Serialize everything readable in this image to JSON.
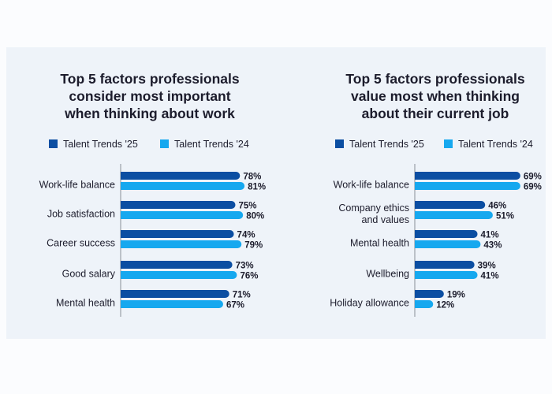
{
  "colors": {
    "series_2025": "#0b4ea2",
    "series_2024": "#16a8ef",
    "text": "#1c1c2c",
    "axis": "#9aa0a8",
    "panel": "#eef3f9"
  },
  "chart_data": [
    {
      "type": "bar",
      "orientation": "horizontal",
      "title": [
        "Top 5 factors professionals",
        "consider most important",
        "when thinking about work"
      ],
      "categories": [
        "Work-life balance",
        "Job satisfaction",
        "Career success",
        "Good salary",
        "Mental health"
      ],
      "series": [
        {
          "name": "Talent Trends '25",
          "values": [
            78,
            75,
            74,
            73,
            71
          ],
          "labels": [
            "78%",
            "75%",
            "74%",
            "73%",
            "71%"
          ]
        },
        {
          "name": "Talent Trends '24",
          "values": [
            81,
            80,
            79,
            76,
            67
          ],
          "labels": [
            "81%",
            "80%",
            "79%",
            "76%",
            "67%"
          ]
        }
      ],
      "unit": "%",
      "legend": "top",
      "grid": false
    },
    {
      "type": "bar",
      "orientation": "horizontal",
      "title": [
        "Top 5 factors professionals",
        "value most when thinking",
        "about their current job"
      ],
      "categories": [
        [
          "Work-life balance"
        ],
        [
          "Company ethics",
          "and values"
        ],
        [
          "Mental health"
        ],
        [
          "Wellbeing"
        ],
        [
          "Holiday allowance"
        ]
      ],
      "series": [
        {
          "name": "Talent Trends '25",
          "values": [
            69,
            46,
            41,
            39,
            19
          ],
          "labels": [
            "69%",
            "46%",
            "41%",
            "39%",
            "19%"
          ]
        },
        {
          "name": "Talent Trends '24",
          "values": [
            69,
            51,
            43,
            41,
            12
          ],
          "labels": [
            "69%",
            "51%",
            "43%",
            "41%",
            "12%"
          ]
        }
      ],
      "unit": "%",
      "legend": "top",
      "grid": false
    }
  ]
}
